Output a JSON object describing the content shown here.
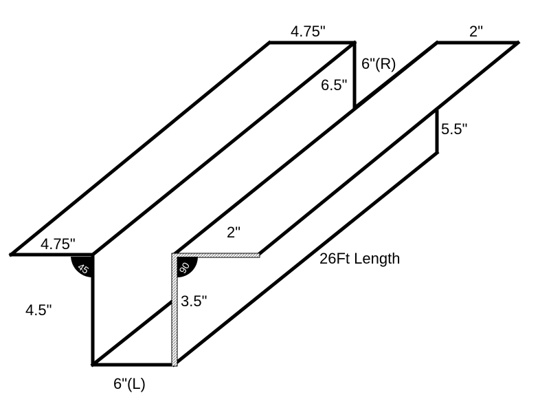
{
  "diagram": {
    "colors": {
      "stroke": "#000000",
      "background": "#ffffff",
      "hatch": "#9a9a9a"
    },
    "labels": {
      "top_left_flange_width": "4.75\"",
      "right_inner_wall_height": "6\"(R)",
      "right_inner_wall_dim": "6.5\"",
      "top_right_flange_width": "2\"",
      "right_outer_wall_height": "5.5\"",
      "bottom_left_flange_width": "4.75\"",
      "front_right_flange_width": "2\"",
      "length": "26Ft Length",
      "left_wall_height": "4.5\"",
      "inner_left_wall_height": "3.5\"",
      "bottom_width": "6\"(L)",
      "angle_left": "45",
      "angle_right": "90"
    }
  }
}
